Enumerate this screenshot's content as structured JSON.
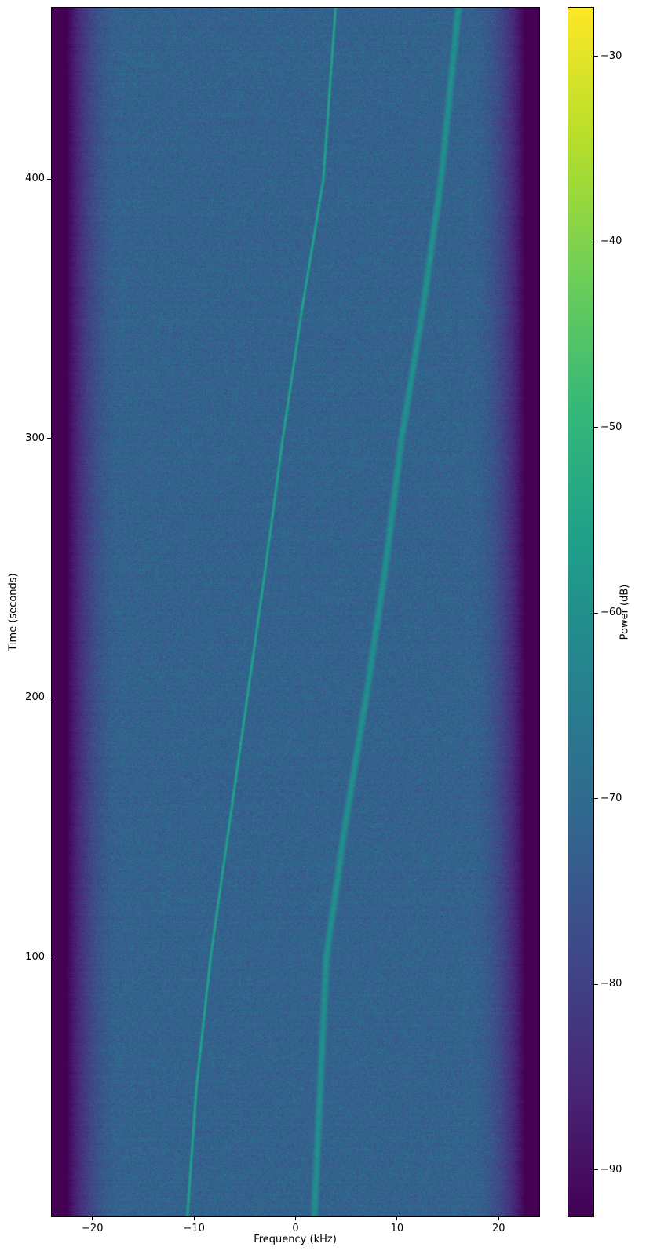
{
  "chart_data": {
    "type": "heatmap",
    "subtype": "spectrogram",
    "title": "",
    "xlabel": "Frequency (kHz)",
    "ylabel": "Time (seconds)",
    "xlim": [
      -24,
      24
    ],
    "ylim": [
      0,
      466
    ],
    "xticks": [
      -20,
      -10,
      0,
      10,
      20
    ],
    "yticks": [
      100,
      200,
      300,
      400
    ],
    "grid": false,
    "colormap": "viridis",
    "colorbar": {
      "label": "Power (dB)",
      "range": [
        -92.5,
        -27.4
      ],
      "ticks": [
        -30,
        -40,
        -50,
        -60,
        -70,
        -80,
        -90
      ]
    },
    "noise_floor_db": -72,
    "edge_rolloff_db": -92,
    "tracks": [
      {
        "width": "narrow",
        "power_db": -55,
        "points": [
          [
            0,
            -10.7
          ],
          [
            50,
            -9.8
          ],
          [
            100,
            -8.4
          ],
          [
            150,
            -6.6
          ],
          [
            200,
            -4.8
          ],
          [
            250,
            -3.0
          ],
          [
            300,
            -1.3
          ],
          [
            350,
            0.6
          ],
          [
            400,
            2.7
          ],
          [
            466,
            3.9
          ]
        ]
      },
      {
        "width": "broad",
        "power_db": -60,
        "points": [
          [
            0,
            1.8
          ],
          [
            50,
            2.4
          ],
          [
            100,
            3.0
          ],
          [
            150,
            4.8
          ],
          [
            200,
            6.9
          ],
          [
            250,
            8.8
          ],
          [
            300,
            10.4
          ],
          [
            350,
            12.5
          ],
          [
            400,
            14.3
          ],
          [
            466,
            16.0
          ]
        ]
      }
    ]
  }
}
